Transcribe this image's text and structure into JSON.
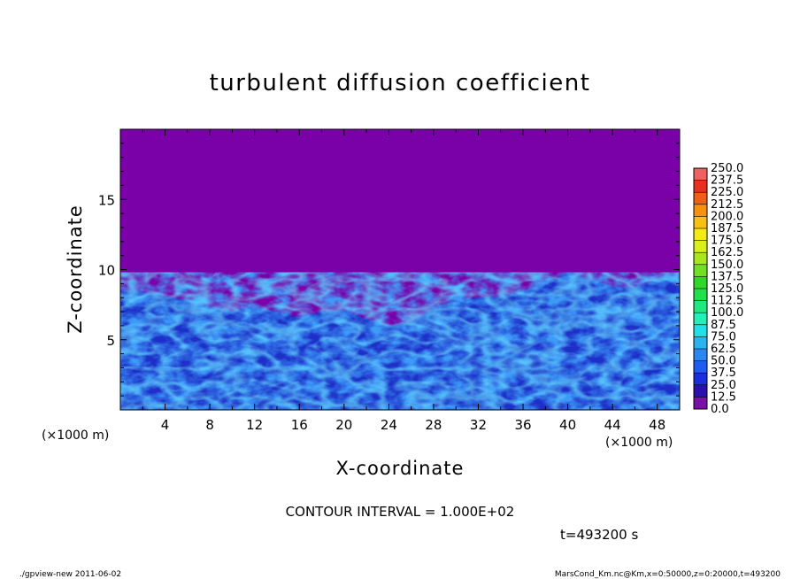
{
  "chart_data": {
    "type": "heatmap",
    "title": "turbulent diffusion coefficient",
    "xlabel": "X-coordinate",
    "ylabel": "Z-coordinate",
    "x_unit_left": "(×1000 m)",
    "x_unit_right": "(×1000 m)",
    "xlim": [
      0,
      50
    ],
    "ylim": [
      0,
      20
    ],
    "x_ticks": [
      4,
      8,
      12,
      16,
      20,
      24,
      28,
      32,
      36,
      40,
      44,
      48
    ],
    "y_ticks": [
      5,
      10,
      15
    ],
    "colorbar": {
      "levels": [
        "0.0",
        "12.5",
        "25.0",
        "37.5",
        "50.0",
        "62.5",
        "75.0",
        "87.5",
        "100.0",
        "112.5",
        "125.0",
        "137.5",
        "150.0",
        "162.5",
        "175.0",
        "187.5",
        "200.0",
        "212.5",
        "225.0",
        "237.5",
        "250.0"
      ],
      "colors": [
        "#7a10a8",
        "#2b10b0",
        "#1a2ee0",
        "#1f5cf0",
        "#2a86f0",
        "#2bb3f0",
        "#1ee0e8",
        "#22f0b8",
        "#20e880",
        "#22e04a",
        "#30d62a",
        "#70e020",
        "#a8e81a",
        "#d8f018",
        "#f4ec10",
        "#f8c010",
        "#f89010",
        "#f06010",
        "#e83020",
        "#f06060"
      ]
    },
    "background_value": 0.0,
    "background_color": "#7a00a8",
    "boundary_layer_top": [
      [
        0,
        8.5
      ],
      [
        2,
        8.4
      ],
      [
        4,
        8.1
      ],
      [
        6,
        7.8
      ],
      [
        8,
        7.4
      ],
      [
        10,
        7.0
      ],
      [
        12,
        7.3
      ],
      [
        14,
        7.0
      ],
      [
        16,
        6.6
      ],
      [
        18,
        7.0
      ],
      [
        20,
        7.1
      ],
      [
        22,
        6.5
      ],
      [
        24,
        6.0
      ],
      [
        26,
        6.2
      ],
      [
        28,
        7.3
      ],
      [
        30,
        7.9
      ],
      [
        32,
        8.0
      ],
      [
        34,
        8.1
      ],
      [
        36,
        8.4
      ],
      [
        38,
        9.0
      ],
      [
        40,
        9.8
      ],
      [
        42,
        9.3
      ],
      [
        44,
        8.8
      ],
      [
        46,
        8.7
      ],
      [
        48,
        9.3
      ],
      [
        50,
        9.7
      ]
    ],
    "contour_interval": "CONTOUR INTERVAL = 1.000E+02",
    "time_label": "t=493200 s"
  },
  "footer": {
    "left": "./gpview-new  2011-06-02",
    "right": "MarsCond_Km.nc@Km,x=0:50000,z=0:20000,t=493200"
  }
}
